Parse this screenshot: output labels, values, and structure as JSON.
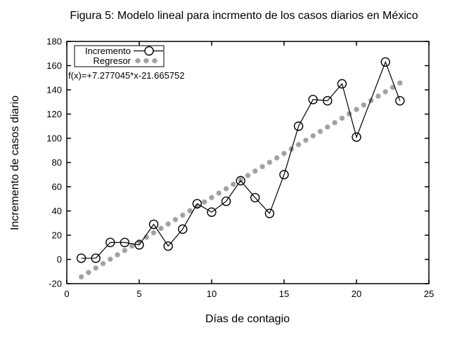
{
  "chart_data": {
    "type": "line",
    "title": "Figura 5: Modelo lineal para incrmento de los casos diarios en México",
    "xlabel": "Días de contagio",
    "ylabel": "Incremento de casos diario",
    "xlim": [
      0,
      25
    ],
    "ylim": [
      -20,
      180
    ],
    "xticks": [
      0,
      5,
      10,
      15,
      20,
      25
    ],
    "yticks": [
      -20,
      0,
      20,
      40,
      60,
      80,
      100,
      120,
      140,
      160,
      180
    ],
    "grid": false,
    "legend_position": "top-left",
    "annotation": "f(x)=+7.277045*x-21.665752",
    "colors": {
      "incremento": "#000000",
      "regresor": "#a0a0a0"
    },
    "series": [
      {
        "name": "Incremento",
        "style": "linespoints",
        "marker": "open-circle",
        "x": [
          1,
          2,
          3,
          4,
          5,
          6,
          7,
          8,
          9,
          10,
          11,
          12,
          13,
          14,
          15,
          16,
          17,
          18,
          19,
          20,
          22,
          23
        ],
        "y": [
          1,
          1,
          14,
          14,
          12,
          29,
          11,
          25,
          46,
          39,
          48,
          65,
          51,
          38,
          70,
          110,
          132,
          131,
          145,
          101,
          163,
          131
        ]
      },
      {
        "name": "Regresor",
        "style": "points",
        "marker": "asterisk",
        "fit": {
          "slope": 7.277045,
          "intercept": -21.665752,
          "x_start": 1,
          "x_end": 23,
          "x_step": 0.5
        }
      }
    ]
  }
}
